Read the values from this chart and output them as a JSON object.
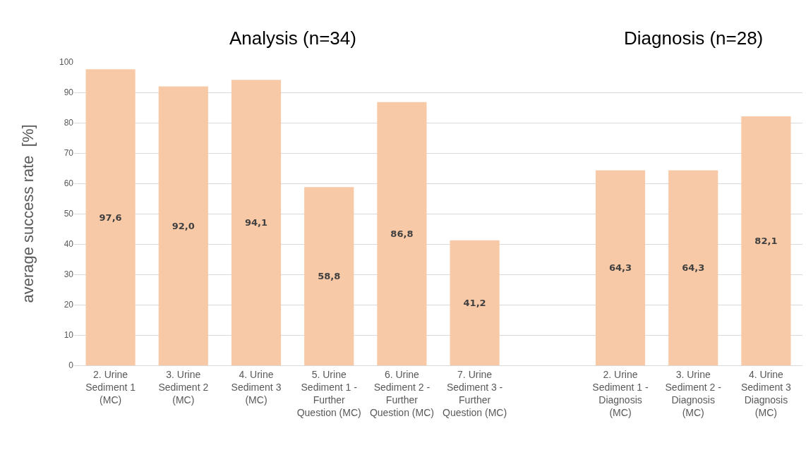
{
  "chart_data": {
    "type": "bar",
    "ylabel": "average success rate  [%]",
    "annotations": [
      "Analysis (n=34)",
      "Diagnosis (n=28)"
    ],
    "categories": [
      "2. Urine Sediment 1 (MC)",
      "3. Urine Sediment 2 (MC)",
      "4. Urine Sediment 3 (MC)",
      "5. Urine Sediment 1 - Further Question (MC)",
      "6. Urine Sediment 2 - Further Question (MC)",
      "7. Urine Sediment 3 - Further Question (MC)",
      null,
      "2. Urine Sediment 1 - Diagnosis (MC)",
      "3. Urine Sediment 2 - Diagnosis (MC)",
      "4. Urine Sediment 3 Diagnosis (MC)"
    ],
    "values": [
      97.6,
      92.0,
      94.1,
      58.8,
      86.8,
      41.2,
      null,
      64.3,
      64.3,
      82.1
    ],
    "value_labels": [
      "97,6",
      "92,0",
      "94,1",
      "58,8",
      "86,8",
      "41,2",
      null,
      "64,3",
      "64,3",
      "82,1"
    ],
    "color": "#f8c9a6",
    "ylim": [
      0,
      100
    ],
    "yticks": [
      0,
      10,
      20,
      30,
      40,
      50,
      60,
      70,
      80,
      90,
      100
    ],
    "grid": "y",
    "legend": false
  }
}
